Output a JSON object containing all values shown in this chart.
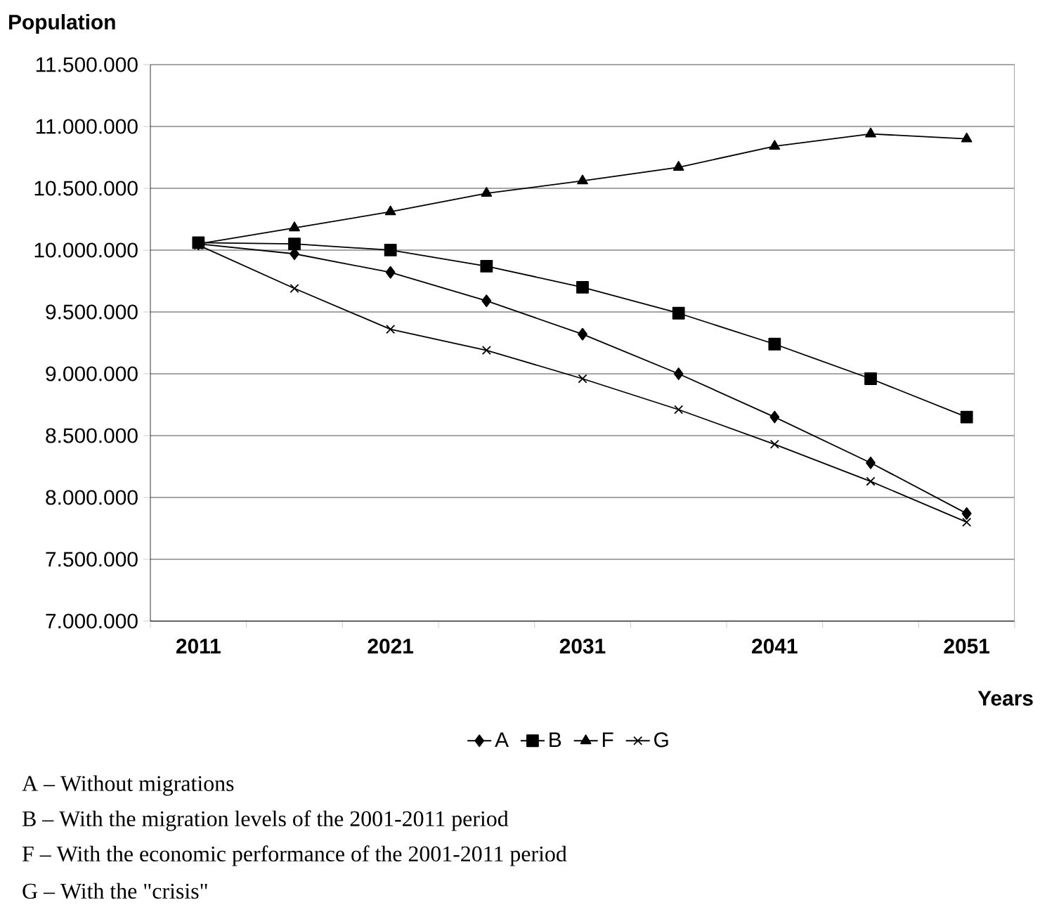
{
  "chart_data": {
    "type": "line",
    "ylabel": "Population",
    "xlabel": "Years",
    "categories": [
      "2011",
      null,
      "2021",
      null,
      "2031",
      null,
      "2041",
      null,
      "2051"
    ],
    "series": [
      {
        "name": "A",
        "color": "#000000",
        "marker": "diamond",
        "values": [
          10050000,
          9970000,
          9820000,
          9590000,
          9320000,
          9000000,
          8650000,
          8280000,
          7870000
        ]
      },
      {
        "name": "B",
        "color": "#000000",
        "marker": "square",
        "values": [
          10060000,
          10050000,
          10000000,
          9870000,
          9700000,
          9490000,
          9240000,
          8960000,
          8650000
        ]
      },
      {
        "name": "F",
        "color": "#000000",
        "marker": "triangle",
        "values": [
          10050000,
          10180000,
          10310000,
          10460000,
          10560000,
          10670000,
          10840000,
          10940000,
          10900000
        ]
      },
      {
        "name": "G",
        "color": "#000000",
        "marker": "cross",
        "values": [
          10040000,
          9690000,
          9360000,
          9190000,
          8960000,
          8710000,
          8430000,
          8130000,
          7800000
        ]
      }
    ],
    "ylim": [
      7000000,
      11500000
    ],
    "yticks": [
      {
        "value": 7000000,
        "label": "7.000.000"
      },
      {
        "value": 7500000,
        "label": "7.500.000"
      },
      {
        "value": 8000000,
        "label": "8.000.000"
      },
      {
        "value": 8500000,
        "label": "8.500.000"
      },
      {
        "value": 9000000,
        "label": "9.000.000"
      },
      {
        "value": 9500000,
        "label": "9.500.000"
      },
      {
        "value": 10000000,
        "label": "10.000.000"
      },
      {
        "value": 10500000,
        "label": "10.500.000"
      },
      {
        "value": 11000000,
        "label": "11.000.000"
      },
      {
        "value": 11500000,
        "label": "11.500.000"
      }
    ],
    "grid": "y",
    "legend": "bottom",
    "line_style": "solid",
    "annotations": [
      "A – Without migrations",
      "B – With the migration levels of the 2001-2011 period",
      "F – With the economic performance of the 2001-2011 period",
      "G – With the \"crisis\""
    ]
  }
}
